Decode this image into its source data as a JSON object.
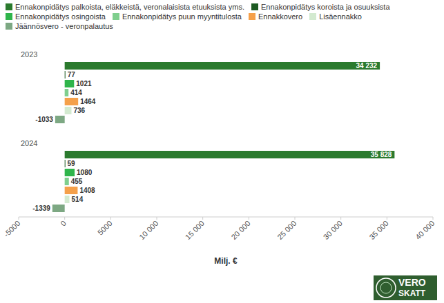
{
  "chart_data": {
    "type": "bar",
    "orientation": "horizontal",
    "data_labels": true,
    "grid": false,
    "legend": "top",
    "xlabel": "Milj. €",
    "categories": [
      "2023",
      "2024"
    ],
    "series": [
      {
        "name": "Ennakonpidätys palkoista, eläkkeistä, veronalaisista etuuksista yms.",
        "color": "#2b7a2e",
        "values": [
          34232,
          35828
        ],
        "value_labels": [
          "34 232",
          "35 828"
        ]
      },
      {
        "name": "Ennakonpidätys koroista ja osuuksista",
        "color": "#1d5a22",
        "values": [
          77,
          59
        ]
      },
      {
        "name": "Ennakonpidätys osingoista",
        "color": "#2fb54b",
        "values": [
          1021,
          1080
        ]
      },
      {
        "name": "Ennakonpidätys puun myyntitulosta",
        "color": "#7fcf8e",
        "values": [
          414,
          455
        ]
      },
      {
        "name": "Ennakkovero",
        "color": "#f5a04a",
        "values": [
          1464,
          1408
        ]
      },
      {
        "name": "Lisäennakko",
        "color": "#d3ead0",
        "values": [
          736,
          514
        ]
      },
      {
        "name": "Jäännösvero - veronpalautus",
        "color": "#7da883",
        "values": [
          -1033,
          -1339
        ]
      }
    ],
    "xlim": [
      -5000,
      40000
    ],
    "xticks": [
      -5000,
      0,
      5000,
      {
        "value": 10000,
        "label": "10 000"
      },
      {
        "value": 15000,
        "label": "15 000"
      },
      {
        "value": 20000,
        "label": "20 000"
      },
      {
        "value": 25000,
        "label": "25 000"
      },
      {
        "value": 30000,
        "label": "30 000"
      },
      {
        "value": 35000,
        "label": "35 000"
      },
      {
        "value": 40000,
        "label": "40 000"
      }
    ]
  },
  "logo": {
    "lines": [
      "VERO",
      "SKATT"
    ]
  }
}
